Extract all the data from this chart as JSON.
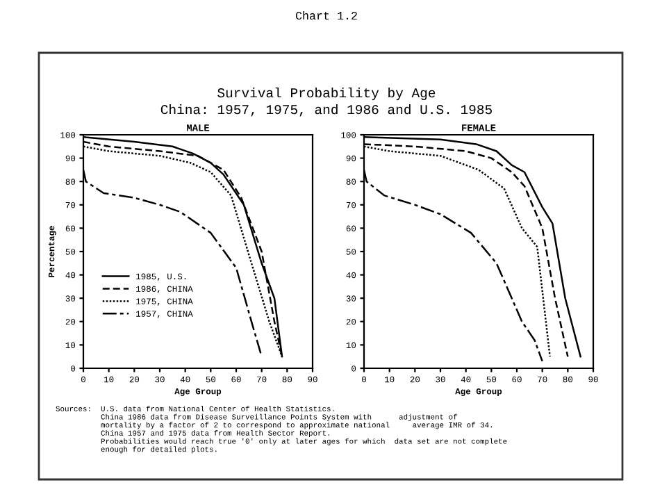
{
  "chart_data": [
    {
      "type": "line",
      "title": "MALE",
      "xlabel": "Age Group",
      "ylabel": "Percentage",
      "annotations": [
        "Chart 1.2",
        "Survival Probability by Age",
        "China: 1957, 1975, and 1986 and U.S. 1985",
        "Sources:  U.S. data from National Center of Health Statistics.\n          China 1986 data from Disease Surveillance Points System with      adjustment of\n          mortality by a factor of 2 to correspond to approximate national     average IMR of 34.\n          China 1957 and 1975 data from Health Sector Report.\n          Probabilities would reach true '0' only at later ages for which  data set are not complete\n          enough for detailed plots."
      ],
      "xlim": [
        0,
        90
      ],
      "xticks": [
        0,
        10,
        20,
        30,
        40,
        50,
        60,
        70,
        80,
        90
      ],
      "ylim": [
        0,
        100
      ],
      "yticks": [
        0,
        10,
        20,
        30,
        40,
        50,
        60,
        70,
        80,
        90,
        100
      ],
      "grid": false,
      "legend": "bottom left",
      "marker": "none",
      "series": [
        {
          "name": "1985, U.S.",
          "color": "#000000",
          "line_style": "solid",
          "x": [
            0,
            20,
            35,
            43,
            50,
            55,
            63,
            70,
            75,
            78
          ],
          "values": [
            99,
            97,
            95,
            92,
            88,
            83,
            70,
            45,
            30,
            5
          ]
        },
        {
          "name": "1986, CHINA",
          "color": "#000000",
          "line_style": "dashed",
          "x": [
            0,
            10,
            30,
            45,
            50,
            55,
            62,
            70,
            75,
            78
          ],
          "values": [
            97,
            95,
            93,
            91,
            88,
            85,
            73,
            50,
            20,
            5
          ]
        },
        {
          "name": "1975, CHINA",
          "color": "#000000",
          "line_style": "dotted",
          "x": [
            0,
            10,
            30,
            42,
            50,
            58,
            66,
            73,
            78
          ],
          "values": [
            95,
            93,
            91,
            88,
            84,
            74,
            45,
            20,
            5
          ]
        },
        {
          "name": "1957, CHINA",
          "color": "#000000",
          "line_style": "longdash",
          "x": [
            0,
            1,
            8,
            20,
            30,
            38,
            50,
            60,
            66,
            70
          ],
          "values": [
            85,
            80,
            75,
            73,
            70,
            67,
            58,
            43,
            20,
            5
          ]
        }
      ]
    },
    {
      "type": "line",
      "title": "FEMALE",
      "xlabel": "Age Group",
      "xlim": [
        0,
        90
      ],
      "xticks": [
        0,
        10,
        20,
        30,
        40,
        50,
        60,
        70,
        80,
        90
      ],
      "ylim": [
        0,
        100
      ],
      "yticks": [
        0,
        10,
        20,
        30,
        40,
        50,
        60,
        70,
        80,
        90,
        100
      ],
      "grid": false,
      "marker": "none",
      "series": [
        {
          "color": "#000000",
          "line_style": "solid",
          "x": [
            0,
            30,
            44,
            52,
            58,
            63,
            70,
            74,
            79,
            85
          ],
          "values": [
            99,
            98,
            96,
            93,
            87,
            84,
            69,
            62,
            30,
            5
          ]
        },
        {
          "color": "#000000",
          "line_style": "dashed",
          "x": [
            0,
            20,
            40,
            50,
            58,
            63,
            70,
            75,
            80
          ],
          "values": [
            96,
            95,
            93,
            90,
            84,
            78,
            60,
            30,
            5
          ]
        },
        {
          "color": "#000000",
          "line_style": "dotted",
          "x": [
            0,
            10,
            30,
            45,
            55,
            62,
            68,
            73
          ],
          "values": [
            95,
            93,
            91,
            85,
            77,
            60,
            52,
            5
          ]
        },
        {
          "color": "#000000",
          "line_style": "longdash",
          "x": [
            0,
            1,
            8,
            20,
            30,
            42,
            52,
            62,
            67,
            70
          ],
          "values": [
            85,
            80,
            74,
            70,
            66,
            58,
            45,
            20,
            12,
            3
          ]
        }
      ]
    }
  ]
}
